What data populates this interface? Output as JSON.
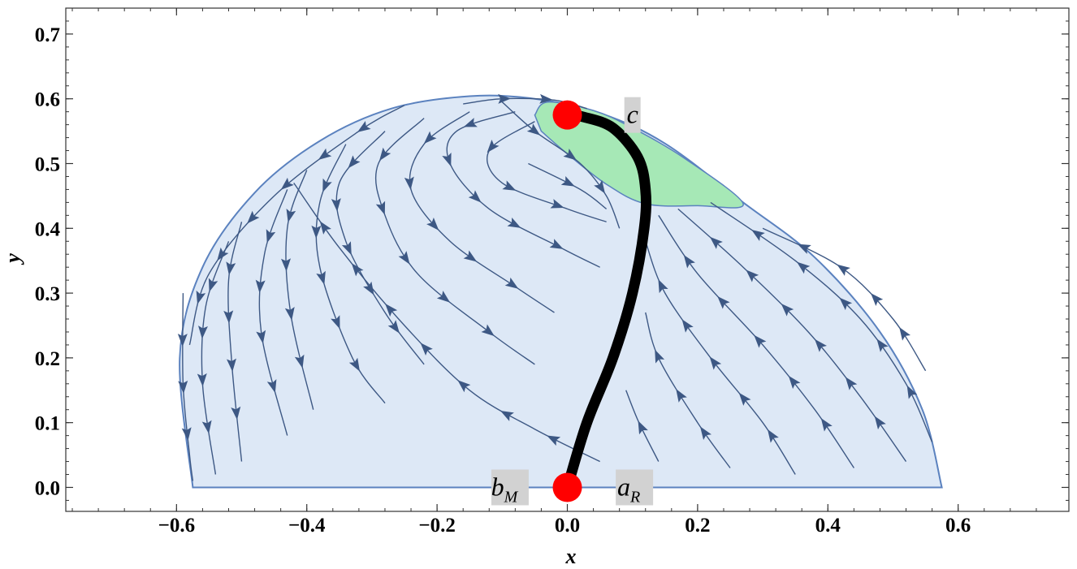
{
  "chart_data": {
    "type": "scatter",
    "subtype": "phase-portrait stream plot",
    "title": "",
    "xlabel": "x",
    "ylabel": "y",
    "xlim": [
      -0.77,
      0.77
    ],
    "ylim": [
      -0.037,
      0.74
    ],
    "x_ticks": [
      -0.6,
      -0.4,
      -0.2,
      0.0,
      0.2,
      0.4,
      0.6
    ],
    "x_tick_labels": [
      "−0.6",
      "−0.4",
      "−0.2",
      "0.0",
      "0.2",
      "0.4",
      "0.6"
    ],
    "y_ticks": [
      0.0,
      0.1,
      0.2,
      0.3,
      0.4,
      0.5,
      0.6,
      0.7
    ],
    "y_tick_labels": [
      "0.0",
      "0.1",
      "0.2",
      "0.3",
      "0.4",
      "0.5",
      "0.6",
      "0.7"
    ],
    "grid": false,
    "colors": {
      "region_fill": "#dde8f6",
      "region_stroke": "#5b82bf",
      "green_fill": "#a6e8b6",
      "stream": "#3d5884",
      "curve": "#000000",
      "point": "#ff0000",
      "label_box": "#d2d2d2"
    },
    "region_boundary": [
      [
        -0.575,
        0.0
      ],
      [
        -0.595,
        0.2
      ],
      [
        -0.56,
        0.34
      ],
      [
        -0.48,
        0.455
      ],
      [
        -0.38,
        0.535
      ],
      [
        -0.27,
        0.585
      ],
      [
        -0.15,
        0.604
      ],
      [
        -0.05,
        0.6
      ],
      [
        0.05,
        0.578
      ],
      [
        0.15,
        0.531
      ],
      [
        0.27,
        0.44
      ],
      [
        0.38,
        0.355
      ],
      [
        0.48,
        0.24
      ],
      [
        0.545,
        0.12
      ],
      [
        0.575,
        0.0
      ]
    ],
    "green_region": [
      [
        -0.05,
        0.575
      ],
      [
        -0.03,
        0.595
      ],
      [
        0.04,
        0.582
      ],
      [
        0.1,
        0.555
      ],
      [
        0.18,
        0.508
      ],
      [
        0.27,
        0.438
      ],
      [
        0.2,
        0.435
      ],
      [
        0.12,
        0.438
      ],
      [
        0.06,
        0.468
      ],
      [
        0.0,
        0.515
      ],
      [
        -0.04,
        0.55
      ]
    ],
    "heteroclinic_curve": [
      [
        0.0,
        0.0
      ],
      [
        0.03,
        0.1
      ],
      [
        0.07,
        0.2
      ],
      [
        0.1,
        0.3
      ],
      [
        0.118,
        0.4
      ],
      [
        0.12,
        0.46
      ],
      [
        0.108,
        0.51
      ],
      [
        0.07,
        0.555
      ],
      [
        0.025,
        0.572
      ],
      [
        0.0,
        0.575
      ]
    ],
    "critical_points": [
      {
        "x": 0.0,
        "y": 0.575
      },
      {
        "x": 0.0,
        "y": 0.0
      }
    ],
    "point_labels": [
      {
        "main": "c",
        "sub": "",
        "x": 0.1,
        "y": 0.575
      },
      {
        "main": "b",
        "sub": "M",
        "x": -0.088,
        "y": 0.0
      },
      {
        "main": "a",
        "sub": "R",
        "x": 0.103,
        "y": 0.0
      }
    ],
    "streamlines": [
      [
        [
          -0.59,
          0.3
        ],
        [
          -0.59,
          0.16
        ],
        [
          -0.58,
          0.05
        ],
        [
          -0.575,
          0.01
        ]
      ],
      [
        [
          -0.52,
          0.38
        ],
        [
          -0.555,
          0.28
        ],
        [
          -0.56,
          0.16
        ],
        [
          -0.54,
          0.02
        ]
      ],
      [
        [
          -0.5,
          0.41
        ],
        [
          -0.52,
          0.32
        ],
        [
          -0.515,
          0.19
        ],
        [
          -0.5,
          0.04
        ]
      ],
      [
        [
          -0.43,
          0.46
        ],
        [
          -0.465,
          0.36
        ],
        [
          -0.47,
          0.24
        ],
        [
          -0.43,
          0.08
        ]
      ],
      [
        [
          -0.4,
          0.49
        ],
        [
          -0.43,
          0.4
        ],
        [
          -0.425,
          0.27
        ],
        [
          -0.39,
          0.12
        ]
      ],
      [
        [
          -0.34,
          0.53
        ],
        [
          -0.38,
          0.44
        ],
        [
          -0.38,
          0.34
        ],
        [
          -0.33,
          0.2
        ],
        [
          -0.28,
          0.13
        ]
      ],
      [
        [
          -0.28,
          0.55
        ],
        [
          -0.35,
          0.47
        ],
        [
          -0.34,
          0.38
        ],
        [
          -0.28,
          0.27
        ],
        [
          -0.22,
          0.19
        ]
      ],
      [
        [
          -0.22,
          0.57
        ],
        [
          -0.29,
          0.5
        ],
        [
          -0.28,
          0.42
        ],
        [
          -0.23,
          0.33
        ],
        [
          -0.12,
          0.24
        ],
        [
          -0.05,
          0.19
        ]
      ],
      [
        [
          -0.15,
          0.58
        ],
        [
          -0.22,
          0.53
        ],
        [
          -0.24,
          0.46
        ],
        [
          -0.18,
          0.38
        ],
        [
          -0.08,
          0.31
        ],
        [
          -0.02,
          0.27
        ]
      ],
      [
        [
          -0.08,
          0.58
        ],
        [
          -0.17,
          0.55
        ],
        [
          -0.18,
          0.5
        ],
        [
          -0.12,
          0.43
        ],
        [
          -0.01,
          0.37
        ],
        [
          0.05,
          0.34
        ]
      ],
      [
        [
          -0.05,
          0.565
        ],
        [
          -0.12,
          0.52
        ],
        [
          -0.1,
          0.47
        ],
        [
          0.0,
          0.43
        ],
        [
          0.06,
          0.41
        ]
      ],
      [
        [
          -0.1,
          0.595
        ],
        [
          -0.05,
          0.55
        ],
        [
          0.02,
          0.5
        ],
        [
          0.06,
          0.45
        ],
        [
          0.08,
          0.4
        ]
      ],
      [
        [
          -0.16,
          0.592
        ],
        [
          -0.1,
          0.6
        ],
        [
          -0.02,
          0.598
        ],
        [
          0.03,
          0.585
        ]
      ],
      [
        [
          -0.06,
          0.5
        ],
        [
          0.02,
          0.46
        ],
        [
          0.06,
          0.43
        ]
      ],
      [
        [
          -0.25,
          0.59
        ],
        [
          -0.32,
          0.55
        ],
        [
          -0.45,
          0.45
        ],
        [
          -0.55,
          0.33
        ],
        [
          -0.58,
          0.22
        ]
      ],
      [
        [
          0.35,
          0.02
        ],
        [
          0.3,
          0.1
        ],
        [
          0.22,
          0.2
        ],
        [
          0.15,
          0.3
        ],
        [
          0.12,
          0.38
        ]
      ],
      [
        [
          0.44,
          0.03
        ],
        [
          0.38,
          0.12
        ],
        [
          0.3,
          0.22
        ],
        [
          0.2,
          0.33
        ],
        [
          0.14,
          0.42
        ]
      ],
      [
        [
          0.52,
          0.04
        ],
        [
          0.45,
          0.14
        ],
        [
          0.37,
          0.24
        ],
        [
          0.27,
          0.34
        ],
        [
          0.17,
          0.43
        ]
      ],
      [
        [
          0.56,
          0.07
        ],
        [
          0.52,
          0.16
        ],
        [
          0.45,
          0.26
        ],
        [
          0.35,
          0.35
        ],
        [
          0.22,
          0.44
        ]
      ],
      [
        [
          0.55,
          0.18
        ],
        [
          0.5,
          0.26
        ],
        [
          0.42,
          0.34
        ],
        [
          0.3,
          0.4
        ]
      ],
      [
        [
          0.25,
          0.03
        ],
        [
          0.2,
          0.1
        ],
        [
          0.14,
          0.2
        ],
        [
          0.12,
          0.27
        ]
      ],
      [
        [
          0.14,
          0.04
        ],
        [
          0.11,
          0.1
        ],
        [
          0.09,
          0.15
        ]
      ],
      [
        [
          0.05,
          0.04
        ],
        [
          -0.05,
          0.09
        ],
        [
          -0.15,
          0.15
        ],
        [
          -0.25,
          0.25
        ],
        [
          -0.35,
          0.37
        ],
        [
          -0.42,
          0.47
        ]
      ]
    ]
  }
}
